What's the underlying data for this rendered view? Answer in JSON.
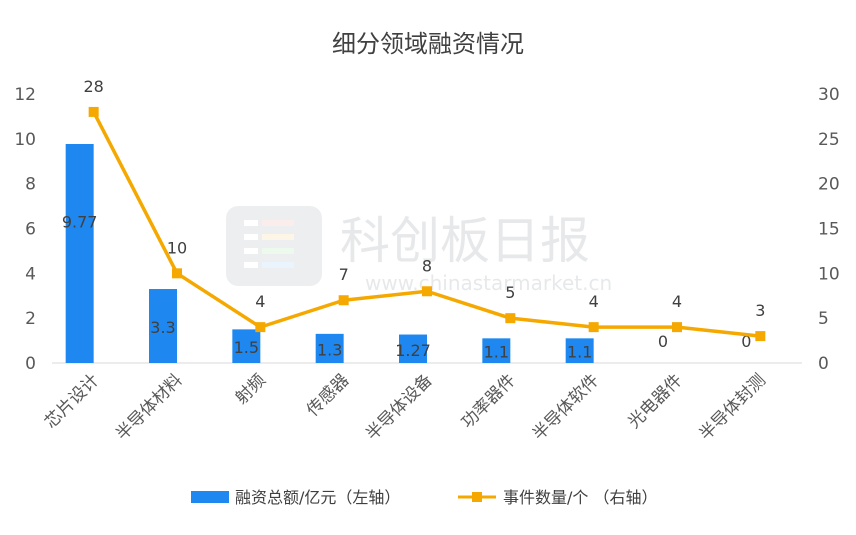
{
  "chart_data": {
    "type": "bar+line",
    "title": "细分领域融资情况",
    "categories": [
      "芯片设计",
      "半导体材料",
      "射频",
      "传感器",
      "半导体设备",
      "功率器件",
      "半导体软件",
      "光电器件",
      "半导体封测"
    ],
    "series": [
      {
        "name": "融资总额/亿元（左轴）",
        "type": "bar",
        "axis": "left",
        "color": "#1E88F0",
        "values": [
          9.77,
          3.3,
          1.5,
          1.3,
          1.27,
          1.1,
          1.1,
          0,
          0
        ],
        "labels": [
          "9.77",
          "3.3",
          "1.5",
          "1.3",
          "1.27",
          "1.1",
          "1.1",
          "0",
          "0"
        ]
      },
      {
        "name": "事件数量/个 （右轴）",
        "type": "line",
        "axis": "right",
        "color": "#F5A800",
        "values": [
          28,
          10,
          4,
          7,
          8,
          5,
          4,
          4,
          3
        ],
        "labels": [
          "28",
          "10",
          "4",
          "7",
          "8",
          "5",
          "4",
          "4",
          "3"
        ]
      }
    ],
    "y_left": {
      "min": 0,
      "max": 12,
      "ticks": [
        "0",
        "2",
        "4",
        "6",
        "8",
        "10",
        "12"
      ]
    },
    "y_right": {
      "min": 0,
      "max": 30,
      "ticks": [
        "0",
        "5",
        "10",
        "15",
        "20",
        "25",
        "30"
      ]
    },
    "grid": false,
    "legend_position": "bottom"
  },
  "watermark": {
    "text": "科创板日报",
    "url": "www.chinastarmarket.cn"
  }
}
